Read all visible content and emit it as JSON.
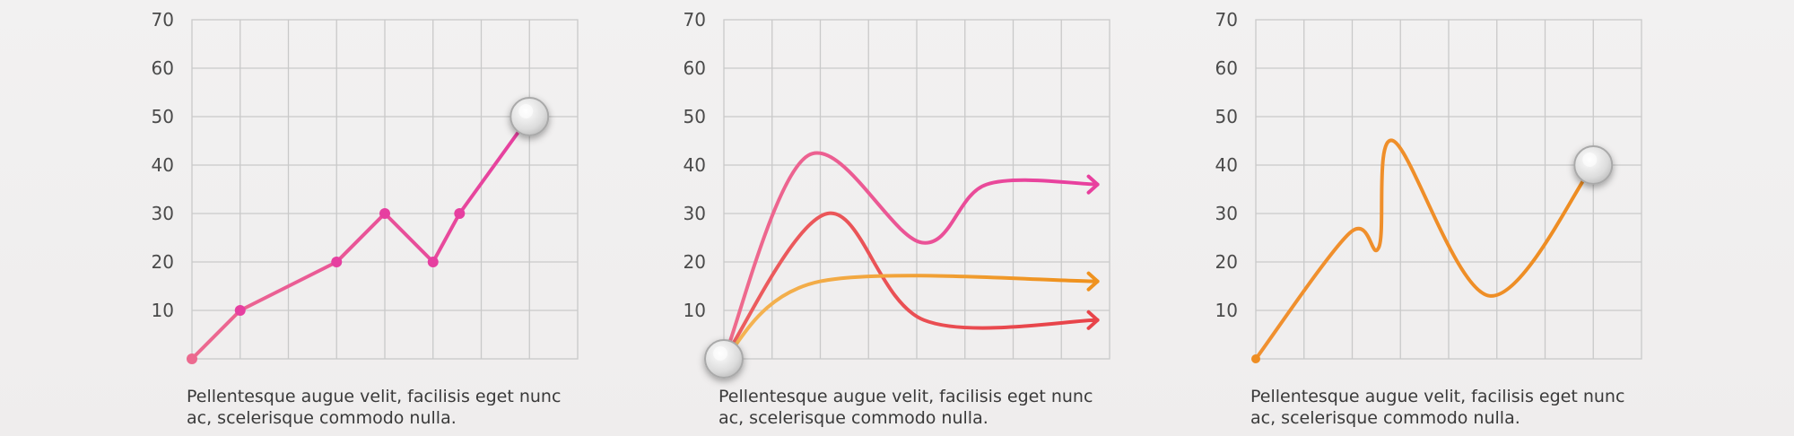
{
  "chart_data": [
    {
      "type": "line",
      "y_ticks": [
        "10",
        "20",
        "30",
        "40",
        "50",
        "60",
        "70"
      ],
      "ylim": [
        0,
        70
      ],
      "xlim": [
        0,
        8
      ],
      "grid": true,
      "series": [
        {
          "color": "#e63fa0",
          "color_start": "#ec6a8f",
          "points": [
            [
              0,
              0
            ],
            [
              1,
              10
            ],
            [
              3,
              20
            ],
            [
              4,
              30
            ],
            [
              5,
              20
            ],
            [
              5.55,
              30
            ],
            [
              7,
              50
            ]
          ],
          "markers": true,
          "end_knob": true
        }
      ],
      "caption": [
        "Pellentesque augue velit, facilisis eget nunc",
        "ac, scelerisque commodo nulla."
      ]
    },
    {
      "type": "line",
      "y_ticks": [
        "10",
        "20",
        "30",
        "40",
        "50",
        "60",
        "70"
      ],
      "ylim": [
        0,
        70
      ],
      "xlim": [
        0,
        8
      ],
      "grid": true,
      "start_knob": [
        0,
        0
      ],
      "series": [
        {
          "color": "#e8409e",
          "color_start": "#ee6c8c",
          "points": [
            [
              0,
              0
            ],
            [
              1.75,
              42
            ],
            [
              4.1,
              24
            ],
            [
              5.45,
              36
            ],
            [
              7.75,
              36
            ]
          ],
          "arrow": true
        },
        {
          "color": "#e8444a",
          "color_start": "#ec5e60",
          "points": [
            [
              0,
              0
            ],
            [
              2.15,
              30
            ],
            [
              4.15,
              8
            ],
            [
              7.75,
              8
            ]
          ],
          "arrow": true
        },
        {
          "color": "#ef921f",
          "color_start": "#f4b556",
          "points": [
            [
              0,
              0
            ],
            [
              2,
              16
            ],
            [
              7.75,
              16
            ]
          ],
          "arrow": true
        }
      ],
      "caption": [
        "Pellentesque augue velit, facilisis eget nunc",
        "ac, scelerisque commodo nulla."
      ]
    },
    {
      "type": "line",
      "y_ticks": [
        "10",
        "20",
        "30",
        "40",
        "50",
        "60",
        "70"
      ],
      "ylim": [
        0,
        70
      ],
      "xlim": [
        0,
        8
      ],
      "grid": true,
      "series": [
        {
          "color": "#ee8d22",
          "color_start": "#f09030",
          "points": [
            [
              0,
              0
            ],
            [
              1.95,
              26
            ],
            [
              2.55,
              23
            ],
            [
              2.85,
              45
            ],
            [
              4.85,
              13
            ],
            [
              7,
              40
            ]
          ],
          "dot_start": true,
          "end_knob": true
        }
      ],
      "caption": [
        "Pellentesque augue velit, facilisis eget nunc",
        "ac, scelerisque commodo nulla."
      ]
    }
  ]
}
